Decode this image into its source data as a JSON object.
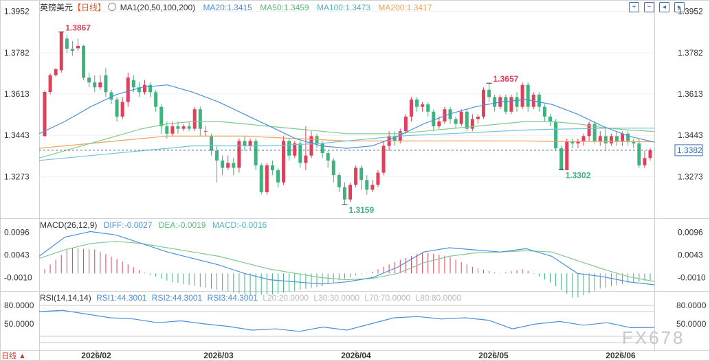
{
  "header": {
    "symbol": "英镑美元",
    "period": "【日线】",
    "ma_label": "MA1(20,50,100,200)",
    "ma20": "MA20:1.3415",
    "ma50": "MA50:1.3459",
    "ma100": "MA100:1.3473",
    "ma200": "MA200:1.3417"
  },
  "toolbar_icons": [
    "zoom-in-icon",
    "zoom-out-icon",
    "scroll-left-icon",
    "scroll-right-icon"
  ],
  "macd_header": {
    "label": "MACD(26,12,9)",
    "diff": "DIFF:-0.0027",
    "dea": "DEA:-0.0019",
    "macd": "MACD:-0.0016"
  },
  "rsi_header": {
    "label": "RSI(14,14,14)",
    "rsi1": "RSI1:44.3001",
    "rsi2": "RSI2:44.3001",
    "rsi3": "RSI3:44.3001",
    "l20": "L20:20.0000",
    "l30": "L30:30.0000",
    "l70": "L70:70.0000",
    "l80": "L80:80.0000"
  },
  "watermark": "FX678",
  "corner_label": "日线 ▲",
  "colors": {
    "up": "#e0405a",
    "down": "#3fb37f",
    "ma20": "#4a90d9",
    "ma50": "#7fc98e",
    "ma100": "#74c2d6",
    "ma200": "#f0a35c",
    "dif": "#4a90d9",
    "dea": "#7fc98e",
    "rsi": "#4a90d9",
    "price_line": "#3a6fb0"
  },
  "chart_data": {
    "type": "candlestick",
    "price_axis_ticks": [
      "1.3952",
      "1.3782",
      "1.3613",
      "1.3443",
      "1.3273"
    ],
    "price_range": [
      1.312,
      1.397
    ],
    "x_tick_labels": [
      "2026/02",
      "2026/03",
      "2026/04",
      "2026/05",
      "2026/06"
    ],
    "annotations": [
      {
        "text": "1.3867",
        "value": 1.3867,
        "kind": "high"
      },
      {
        "text": "1.3159",
        "value": 1.3159,
        "kind": "low"
      },
      {
        "text": "1.3657",
        "value": 1.3657,
        "kind": "high"
      },
      {
        "text": "1.3302",
        "value": 1.3302,
        "kind": "low"
      }
    ],
    "last_price": "1.3382",
    "last_price_value": 1.3382,
    "candles": [
      [
        1.344,
        1.3621,
        1.3437,
        1.3628
      ],
      [
        1.3621,
        1.369,
        1.3611,
        1.3697
      ],
      [
        1.369,
        1.3714,
        1.3684,
        1.372
      ],
      [
        1.371,
        1.3867,
        1.37,
        1.3867
      ],
      [
        1.384,
        1.3798,
        1.378,
        1.3855
      ],
      [
        1.3798,
        1.379,
        1.377,
        1.383
      ],
      [
        1.38,
        1.381,
        1.379,
        1.384
      ],
      [
        1.381,
        1.368,
        1.367,
        1.3815
      ],
      [
        1.368,
        1.366,
        1.364,
        1.37
      ],
      [
        1.366,
        1.364,
        1.362,
        1.369
      ],
      [
        1.364,
        1.366,
        1.363,
        1.369
      ],
      [
        1.369,
        1.362,
        1.36,
        1.372
      ],
      [
        1.362,
        1.359,
        1.357,
        1.363
      ],
      [
        1.359,
        1.352,
        1.35,
        1.36
      ],
      [
        1.352,
        1.358,
        1.351,
        1.36
      ],
      [
        1.358,
        1.368,
        1.356,
        1.37
      ],
      [
        1.367,
        1.364,
        1.362,
        1.369
      ],
      [
        1.364,
        1.362,
        1.36,
        1.366
      ],
      [
        1.362,
        1.365,
        1.361,
        1.367
      ],
      [
        1.365,
        1.362,
        1.36,
        1.366
      ],
      [
        1.362,
        1.356,
        1.354,
        1.363
      ],
      [
        1.356,
        1.348,
        1.345,
        1.357
      ],
      [
        1.348,
        1.345,
        1.343,
        1.35
      ],
      [
        1.345,
        1.348,
        1.344,
        1.35
      ],
      [
        1.348,
        1.347,
        1.345,
        1.35
      ],
      [
        1.347,
        1.348,
        1.346,
        1.349
      ],
      [
        1.348,
        1.347,
        1.346,
        1.35
      ],
      [
        1.347,
        1.355,
        1.346,
        1.356
      ],
      [
        1.355,
        1.347,
        1.344,
        1.356
      ],
      [
        1.346,
        1.346,
        1.344,
        1.348
      ],
      [
        1.344,
        1.338,
        1.336,
        1.345
      ],
      [
        1.338,
        1.334,
        1.325,
        1.34
      ],
      [
        1.334,
        1.331,
        1.328,
        1.336
      ],
      [
        1.331,
        1.333,
        1.33,
        1.336
      ],
      [
        1.333,
        1.331,
        1.328,
        1.335
      ],
      [
        1.331,
        1.342,
        1.329,
        1.343
      ],
      [
        1.342,
        1.34,
        1.338,
        1.344
      ],
      [
        1.34,
        1.342,
        1.338,
        1.343
      ],
      [
        1.342,
        1.332,
        1.33,
        1.343
      ],
      [
        1.332,
        1.321,
        1.32,
        1.333
      ],
      [
        1.321,
        1.332,
        1.32,
        1.333
      ],
      [
        1.332,
        1.33,
        1.328,
        1.334
      ],
      [
        1.33,
        1.325,
        1.323,
        1.331
      ],
      [
        1.325,
        1.342,
        1.324,
        1.344
      ],
      [
        1.342,
        1.336,
        1.334,
        1.343
      ],
      [
        1.336,
        1.341,
        1.335,
        1.342
      ],
      [
        1.341,
        1.333,
        1.331,
        1.342
      ],
      [
        1.333,
        1.336,
        1.33,
        1.348
      ],
      [
        1.336,
        1.344,
        1.335,
        1.346
      ],
      [
        1.344,
        1.341,
        1.339,
        1.345
      ],
      [
        1.341,
        1.337,
        1.335,
        1.342
      ],
      [
        1.337,
        1.334,
        1.331,
        1.338
      ],
      [
        1.334,
        1.328,
        1.325,
        1.335
      ],
      [
        1.328,
        1.323,
        1.321,
        1.329
      ],
      [
        1.323,
        1.318,
        1.3159,
        1.325
      ],
      [
        1.318,
        1.324,
        1.317,
        1.325
      ],
      [
        1.324,
        1.331,
        1.323,
        1.332
      ],
      [
        1.331,
        1.326,
        1.322,
        1.332
      ],
      [
        1.326,
        1.322,
        1.32,
        1.328
      ],
      [
        1.322,
        1.324,
        1.321,
        1.326
      ],
      [
        1.324,
        1.329,
        1.323,
        1.33
      ],
      [
        1.329,
        1.34,
        1.328,
        1.342
      ],
      [
        1.34,
        1.344,
        1.338,
        1.346
      ],
      [
        1.344,
        1.342,
        1.34,
        1.346
      ],
      [
        1.342,
        1.346,
        1.341,
        1.347
      ],
      [
        1.346,
        1.352,
        1.345,
        1.353
      ],
      [
        1.352,
        1.359,
        1.35,
        1.36
      ],
      [
        1.359,
        1.356,
        1.354,
        1.36
      ],
      [
        1.356,
        1.357,
        1.354,
        1.358
      ],
      [
        1.357,
        1.354,
        1.352,
        1.358
      ],
      [
        1.354,
        1.348,
        1.346,
        1.355
      ],
      [
        1.348,
        1.35,
        1.347,
        1.352
      ],
      [
        1.35,
        1.355,
        1.349,
        1.356
      ],
      [
        1.355,
        1.351,
        1.349,
        1.356
      ],
      [
        1.351,
        1.349,
        1.347,
        1.352
      ],
      [
        1.349,
        1.354,
        1.348,
        1.355
      ],
      [
        1.354,
        1.347,
        1.346,
        1.355
      ],
      [
        1.347,
        1.351,
        1.346,
        1.353
      ],
      [
        1.351,
        1.352,
        1.349,
        1.353
      ],
      [
        1.352,
        1.363,
        1.351,
        1.364
      ],
      [
        1.363,
        1.36,
        1.358,
        1.3657
      ],
      [
        1.36,
        1.356,
        1.354,
        1.361
      ],
      [
        1.356,
        1.36,
        1.355,
        1.361
      ],
      [
        1.36,
        1.354,
        1.353,
        1.361
      ],
      [
        1.354,
        1.36,
        1.353,
        1.361
      ],
      [
        1.36,
        1.356,
        1.354,
        1.362
      ],
      [
        1.356,
        1.365,
        1.355,
        1.366
      ],
      [
        1.365,
        1.356,
        1.354,
        1.366
      ],
      [
        1.356,
        1.361,
        1.355,
        1.362
      ],
      [
        1.361,
        1.356,
        1.354,
        1.362
      ],
      [
        1.356,
        1.352,
        1.35,
        1.357
      ],
      [
        1.352,
        1.35,
        1.348,
        1.353
      ],
      [
        1.35,
        1.339,
        1.338,
        1.351
      ],
      [
        1.339,
        1.33,
        1.3302,
        1.34
      ],
      [
        1.33,
        1.342,
        1.3302,
        1.343
      ],
      [
        1.342,
        1.341,
        1.339,
        1.343
      ],
      [
        1.341,
        1.342,
        1.339,
        1.343
      ],
      [
        1.342,
        1.344,
        1.34,
        1.345
      ],
      [
        1.344,
        1.349,
        1.342,
        1.35
      ],
      [
        1.349,
        1.342,
        1.341,
        1.35
      ],
      [
        1.342,
        1.344,
        1.34,
        1.346
      ],
      [
        1.344,
        1.341,
        1.338,
        1.347
      ],
      [
        1.341,
        1.344,
        1.34,
        1.345
      ],
      [
        1.344,
        1.342,
        1.34,
        1.346
      ],
      [
        1.342,
        1.345,
        1.34,
        1.346
      ],
      [
        1.345,
        1.342,
        1.34,
        1.346
      ],
      [
        1.342,
        1.341,
        1.339,
        1.343
      ],
      [
        1.341,
        1.332,
        1.331,
        1.343
      ],
      [
        1.332,
        1.335,
        1.331,
        1.338
      ],
      [
        1.335,
        1.3382,
        1.334,
        1.339
      ]
    ],
    "ma20": [
      1.345,
      1.35,
      1.356,
      1.361,
      1.364,
      1.365,
      1.362,
      1.358,
      1.353,
      1.348,
      1.343,
      1.34,
      1.339,
      1.34,
      1.344,
      1.349,
      1.353,
      1.356,
      1.358,
      1.359,
      1.357,
      1.353,
      1.348,
      1.344,
      1.3415
    ],
    "ma50": [
      1.335,
      1.338,
      1.341,
      1.344,
      1.347,
      1.349,
      1.35,
      1.35,
      1.349,
      1.348,
      1.347,
      1.346,
      1.345,
      1.345,
      1.345,
      1.346,
      1.347,
      1.348,
      1.349,
      1.35,
      1.35,
      1.349,
      1.3475,
      1.3465,
      1.3459
    ],
    "ma100": [
      1.334,
      1.335,
      1.336,
      1.337,
      1.338,
      1.339,
      1.34,
      1.34,
      1.34,
      1.34,
      1.3405,
      1.341,
      1.342,
      1.343,
      1.344,
      1.3445,
      1.345,
      1.3455,
      1.346,
      1.3465,
      1.3468,
      1.347,
      1.3472,
      1.3473,
      1.3473
    ],
    "ma200": [
      1.339,
      1.34,
      1.341,
      1.342,
      1.343,
      1.344,
      1.344,
      1.344,
      1.344,
      1.3435,
      1.343,
      1.3425,
      1.342,
      1.342,
      1.342,
      1.342,
      1.342,
      1.342,
      1.342,
      1.342,
      1.3418,
      1.3418,
      1.3418,
      1.3417,
      1.3417
    ],
    "macd_axis_ticks": [
      "0.0096",
      "0.0043",
      "-0.0010"
    ],
    "macd_range": [
      -0.0035,
      0.011
    ],
    "dif": [
      0.004,
      0.0085,
      0.0098,
      0.009,
      0.007,
      0.005,
      0.0035,
      0.002,
      0.0,
      -0.0015,
      -0.002,
      -0.0025,
      -0.002,
      -0.001,
      0.0015,
      0.005,
      0.006,
      0.0055,
      0.005,
      0.0058,
      0.004,
      0.0,
      -0.0008,
      -0.002,
      -0.0027
    ],
    "dea": [
      0.0035,
      0.0055,
      0.007,
      0.0075,
      0.007,
      0.006,
      0.005,
      0.004,
      0.0025,
      0.001,
      0.0,
      -0.001,
      -0.0015,
      -0.0012,
      0.0,
      0.0025,
      0.004,
      0.0048,
      0.005,
      0.0053,
      0.005,
      0.003,
      0.001,
      -0.0008,
      -0.0019
    ],
    "rsi_axis_ticks": [
      "80.0000",
      "50.0000"
    ],
    "rsi_range": [
      10,
      90
    ],
    "rsi": [
      70,
      72,
      66,
      60,
      58,
      52,
      55,
      50,
      46,
      40,
      42,
      38,
      45,
      40,
      50,
      60,
      62,
      58,
      60,
      56,
      42,
      50,
      54,
      48,
      52,
      44,
      44.3
    ]
  }
}
